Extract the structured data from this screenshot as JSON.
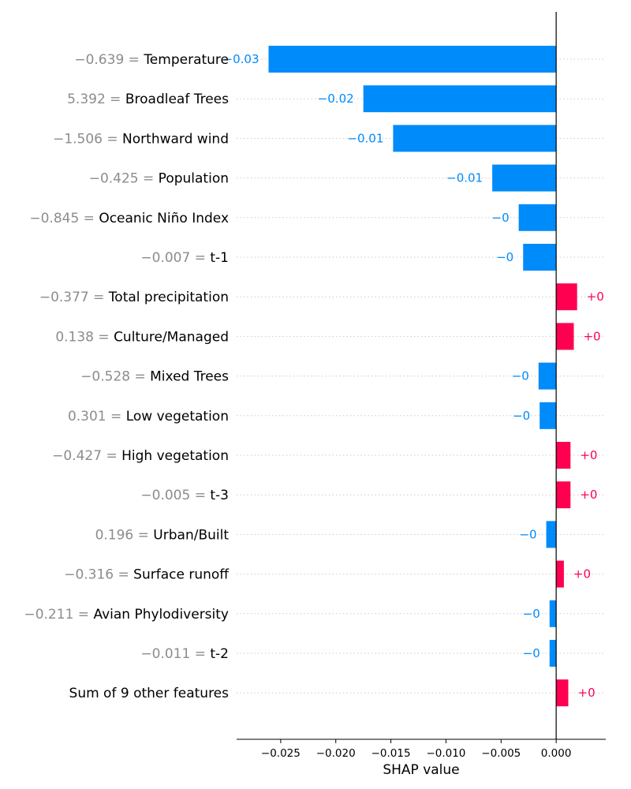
{
  "chart_data": {
    "type": "bar",
    "orientation": "horizontal",
    "xlabel": "SHAP value",
    "xlim": [
      -0.029,
      0.0045
    ],
    "xticks": [
      {
        "value": -0.025,
        "label": "−0.025"
      },
      {
        "value": -0.02,
        "label": "−0.020"
      },
      {
        "value": -0.015,
        "label": "−0.015"
      },
      {
        "value": -0.01,
        "label": "−0.010"
      },
      {
        "value": -0.005,
        "label": "−0.005"
      },
      {
        "value": 0.0,
        "label": "0.000"
      }
    ],
    "grid": "horizontal dotted",
    "colors": {
      "positive": "#ff0051",
      "negative": "#008bfb",
      "value_text": "#8c8c8c",
      "zero_line": "#000000"
    },
    "features": [
      {
        "value_text": "−0.639 = ",
        "name": "Temperature",
        "shap": -0.0261,
        "label": "−0.03"
      },
      {
        "value_text": "5.392 = ",
        "name": "Broadleaf Trees",
        "shap": -0.0175,
        "label": "−0.02"
      },
      {
        "value_text": "−1.506 = ",
        "name": "Northward wind",
        "shap": -0.0148,
        "label": "−0.01"
      },
      {
        "value_text": "−0.425 = ",
        "name": "Population",
        "shap": -0.0058,
        "label": "−0.01"
      },
      {
        "value_text": "−0.845 = ",
        "name": "Oceanic Niño Index",
        "shap": -0.0034,
        "label": "−0"
      },
      {
        "value_text": "−0.007 = ",
        "name": "t-1",
        "shap": -0.003,
        "label": "−0"
      },
      {
        "value_text": "−0.377 = ",
        "name": "Total precipitation",
        "shap": 0.0019,
        "label": "+0"
      },
      {
        "value_text": "0.138 = ",
        "name": "Culture/Managed",
        "shap": 0.0016,
        "label": "+0"
      },
      {
        "value_text": "−0.528 = ",
        "name": "Mixed Trees",
        "shap": -0.0016,
        "label": "−0"
      },
      {
        "value_text": "0.301 = ",
        "name": "Low vegetation",
        "shap": -0.0015,
        "label": "−0"
      },
      {
        "value_text": "−0.427 = ",
        "name": "High vegetation",
        "shap": 0.0013,
        "label": "+0"
      },
      {
        "value_text": "−0.005 = ",
        "name": "t-3",
        "shap": 0.0013,
        "label": "+0"
      },
      {
        "value_text": "0.196 = ",
        "name": "Urban/Built",
        "shap": -0.0009,
        "label": "−0"
      },
      {
        "value_text": "−0.316 = ",
        "name": "Surface runoff",
        "shap": 0.0007,
        "label": "+0"
      },
      {
        "value_text": "−0.211 = ",
        "name": "Avian Phylodiversity",
        "shap": -0.0006,
        "label": "−0"
      },
      {
        "value_text": "−0.011 = ",
        "name": "t-2",
        "shap": -0.0006,
        "label": "−0"
      },
      {
        "value_text": "",
        "name": "Sum of 9 other features",
        "shap": 0.0011,
        "label": "+0"
      }
    ]
  }
}
